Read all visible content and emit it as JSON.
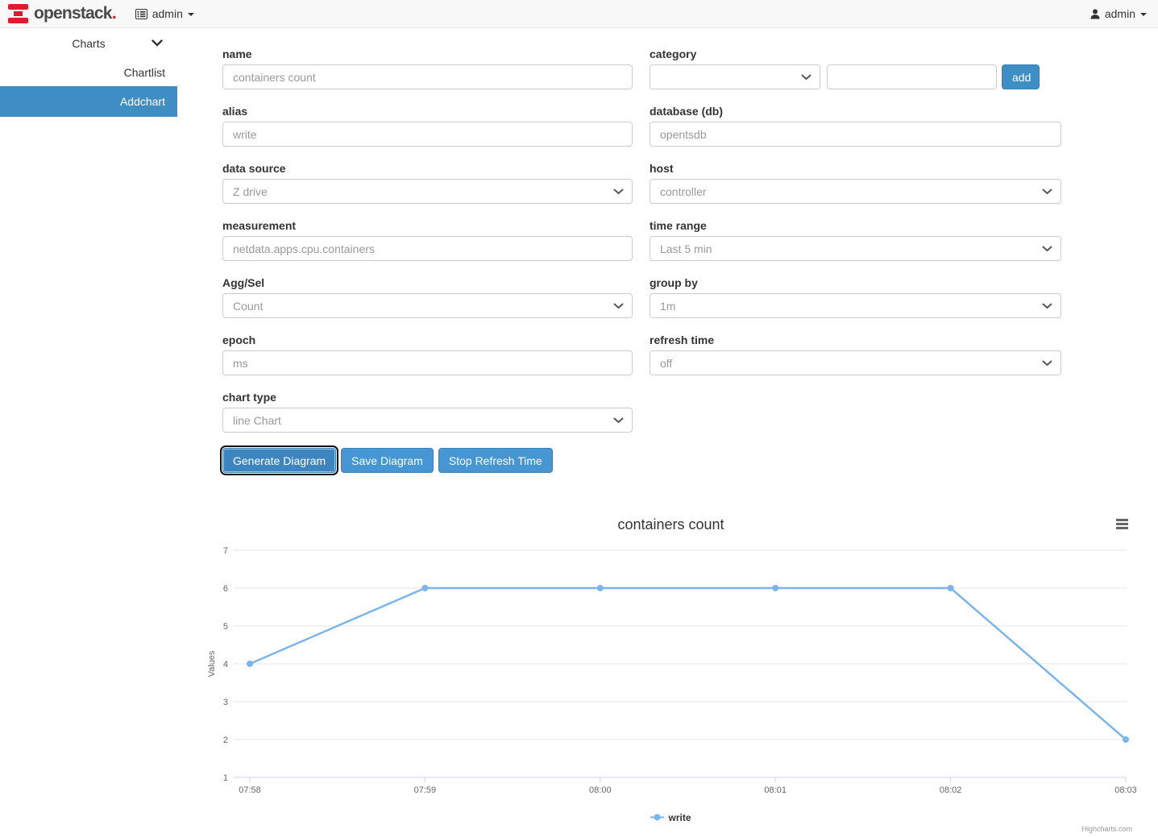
{
  "navbar": {
    "brand": {
      "name": "openstack",
      "dot": "."
    },
    "left_menu": {
      "label": "admin"
    },
    "user_menu": {
      "label": "admin"
    }
  },
  "sidebar": {
    "group_label": "Charts",
    "items": [
      {
        "label": "Chartlist"
      },
      {
        "label": "Addchart"
      }
    ]
  },
  "form": {
    "name": {
      "label": "name",
      "value": "containers count"
    },
    "category": {
      "label": "category",
      "select_value": "",
      "input_value": "",
      "add_label": "add"
    },
    "alias": {
      "label": "alias",
      "value": "write"
    },
    "database": {
      "label": "database (db)",
      "value": "opentsdb"
    },
    "data_source": {
      "label": "data source",
      "value": "Z drive"
    },
    "host": {
      "label": "host",
      "value": "controller"
    },
    "measurement": {
      "label": "measurement",
      "value": "netdata.apps.cpu.containers"
    },
    "time_range": {
      "label": "time range",
      "value": "Last 5 min"
    },
    "agg_sel": {
      "label": "Agg/Sel",
      "value": "Count"
    },
    "group_by": {
      "label": "group by",
      "value": "1m"
    },
    "epoch": {
      "label": "epoch",
      "value": "ms"
    },
    "refresh_time": {
      "label": "refresh time",
      "value": "off"
    },
    "chart_type": {
      "label": "chart type",
      "value": "line Chart"
    },
    "buttons": [
      "Generate Diagram",
      "Save Diagram",
      "Stop Refresh Time"
    ]
  },
  "chart_data": {
    "type": "line",
    "title": "containers count",
    "categories": [
      "07:58",
      "07:59",
      "08:00",
      "08:01",
      "08:02",
      "08:03"
    ],
    "series": [
      {
        "name": "write",
        "values": [
          4,
          6,
          6,
          6,
          6,
          2
        ],
        "color": "#7cb5ec"
      }
    ],
    "ylabel": "Values",
    "ylim": [
      1,
      7
    ],
    "yticks": [
      1,
      2,
      3,
      4,
      5,
      6,
      7
    ],
    "grid": true,
    "legend_position": "bottom",
    "grid_color": "#e6e6e6",
    "axis_color": "#ccd6eb",
    "label_color": "#666666",
    "credits": "Highcharts.com"
  }
}
